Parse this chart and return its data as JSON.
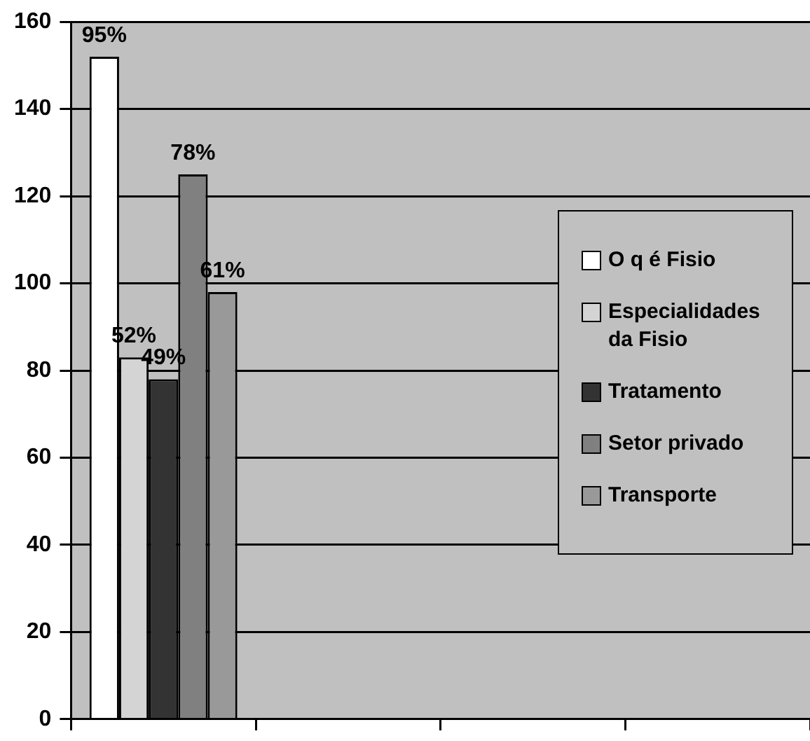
{
  "chart_data": {
    "type": "bar",
    "categories": [
      null,
      null,
      null,
      null
    ],
    "series": [
      {
        "name": "O q é Fisio",
        "color": "#ffffff",
        "values": [
          152,
          null,
          null,
          null
        ]
      },
      {
        "name": "Especialidades da Fisio",
        "color": "#d4d4d4",
        "values": [
          83,
          null,
          null,
          null
        ]
      },
      {
        "name": "Tratamento",
        "color": "#333333",
        "values": [
          78,
          null,
          null,
          null
        ]
      },
      {
        "name": "Setor privado",
        "color": "#808080",
        "values": [
          125,
          null,
          null,
          null
        ]
      },
      {
        "name": "Transporte",
        "color": "#999999",
        "values": [
          98,
          null,
          null,
          null
        ]
      }
    ],
    "annotations": [
      {
        "text": "95%",
        "y": 152
      },
      {
        "text": "52%",
        "y": 83
      },
      {
        "text": "49%",
        "y": 78
      },
      {
        "text": "78%",
        "y": 125
      },
      {
        "text": "61%",
        "y": 98
      }
    ],
    "ylim": [
      0,
      160
    ],
    "yticks": [
      0,
      20,
      40,
      60,
      80,
      100,
      120,
      140,
      160
    ],
    "grid": "y",
    "legend": "right"
  }
}
